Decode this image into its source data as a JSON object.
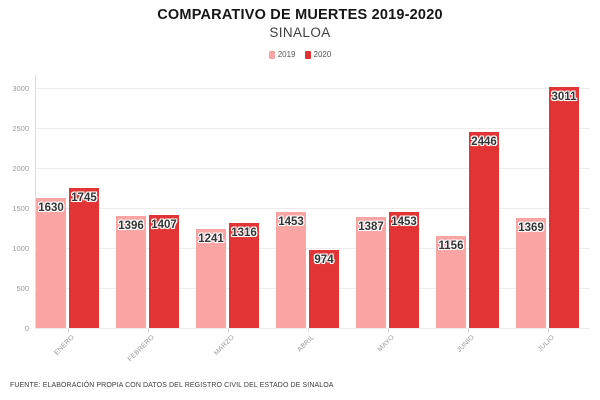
{
  "header": {
    "title": "COMPARATIVO DE MUERTES 2019-2020",
    "subtitle": "SINALOA"
  },
  "legend": [
    {
      "label": "2019",
      "color": "#faa4a4"
    },
    {
      "label": "2020",
      "color": "#e23434"
    }
  ],
  "footer": {
    "source": "FUENTE: ELABORACIÓN PROPIA CON DATOS DEL REGISTRO CIVIL DEL ESTADO DE SINALOA"
  },
  "chart_data": {
    "type": "bar",
    "title": "COMPARATIVO DE MUERTES 2019-2020",
    "subtitle": "SINALOA",
    "categories": [
      "ENERO",
      "FEBRERO",
      "MARZO",
      "ABRIL",
      "MAYO",
      "JUNIO",
      "JULIO"
    ],
    "series": [
      {
        "name": "2019",
        "color": "#faa4a4",
        "values": [
          1630,
          1396,
          1241,
          1453,
          1387,
          1156,
          1369
        ]
      },
      {
        "name": "2020",
        "color": "#e23434",
        "values": [
          1745,
          1407,
          1316,
          974,
          1453,
          2446,
          3011
        ]
      }
    ],
    "xlabel": "",
    "ylabel": "",
    "ylim": [
      0,
      3000
    ],
    "ytick_step": 500,
    "grid": true,
    "legend_position": "top",
    "data_labels": true
  }
}
